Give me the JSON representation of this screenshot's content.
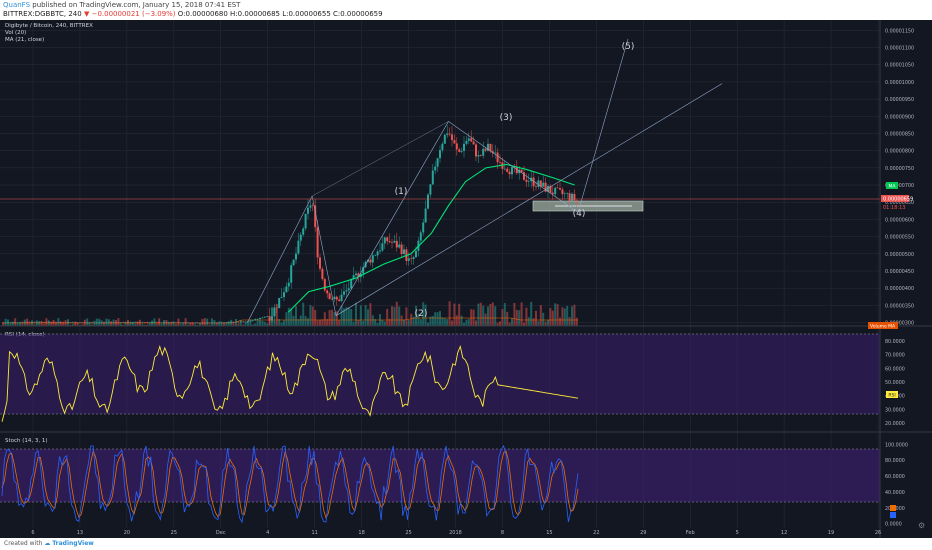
{
  "header": {
    "user": "QuanFS",
    "published": "published on TradingView.com, January 15, 2018 07:41 EST",
    "ticker": "BITTREX:DGBBTC, 240",
    "change": "▼ −0.00000021 (−3.09%)",
    "ohlc": "O:0.00000680 H:0.00000685 L:0.00000655 C:0.00000659"
  },
  "legend": {
    "main": "Digibyte / Bitcoin, 240, BITTREX",
    "vol": "Vol (20)",
    "ma": "MA (21, close)",
    "rsi": "RSI (14, close)",
    "stoch": "Stoch (14, 3, 1)"
  },
  "badges": {
    "ma": "MA",
    "price": "0.00000659",
    "countdown": "01:18:13",
    "volume": "Volume MA",
    "rsi": "RSI"
  },
  "waves": [
    "(1)",
    "(2)",
    "(3)",
    "(4)",
    "(5)"
  ],
  "footer": {
    "created": "Created with",
    "brand": "TradingView"
  },
  "colors": {
    "background": "#131722",
    "grid": "#2a2e39",
    "up": "#26a69a",
    "down": "#ef5350",
    "ma": "#00e676",
    "rsi": "#ffeb3b",
    "stoch_k": "#2962ff",
    "stoch_d": "#ef6c00",
    "band": "#3b1f6e",
    "box": "#9fb0a3"
  },
  "chart_data": [
    {
      "type": "candlestick",
      "title": "Digibyte / Bitcoin, 240, BITTREX",
      "x_ticks": [
        "6",
        "13",
        "20",
        "25",
        "Dec",
        "4",
        "11",
        "18",
        "25",
        "2018",
        "8",
        "15",
        "22",
        "29",
        "Feb",
        "5",
        "12",
        "19",
        "26"
      ],
      "y_ticks": [
        "0.00001150",
        "0.00001100",
        "0.00001050",
        "0.00001000",
        "0.00000950",
        "0.00000900",
        "0.00000850",
        "0.00000800",
        "0.00000750",
        "0.00000700",
        "0.00000650",
        "0.00000600",
        "0.00000550",
        "0.00000500",
        "0.00000450",
        "0.00000400",
        "0.00000350",
        "0.00000300"
      ],
      "ylim": [
        2.9e-06,
        1.18e-05
      ],
      "price_path": [
        [
          0,
          3e-06
        ],
        [
          0.05,
          3.02e-06
        ],
        [
          0.12,
          3e-06
        ],
        [
          0.2,
          3.01e-06
        ],
        [
          0.3,
          2.99e-06
        ],
        [
          0.36,
          3.03e-06
        ],
        [
          0.395,
          3.22e-06
        ],
        [
          0.41,
          3.8e-06
        ],
        [
          0.42,
          4.25e-06
        ],
        [
          0.435,
          5.25e-06
        ],
        [
          0.445,
          6e-06
        ],
        [
          0.455,
          6.6e-06
        ],
        [
          0.46,
          5.6e-06
        ],
        [
          0.465,
          4.7e-06
        ],
        [
          0.475,
          3.95e-06
        ],
        [
          0.49,
          3.6e-06
        ],
        [
          0.505,
          3.9e-06
        ],
        [
          0.525,
          4.5e-06
        ],
        [
          0.545,
          4.95e-06
        ],
        [
          0.565,
          5.4e-06
        ],
        [
          0.585,
          5.2e-06
        ],
        [
          0.6,
          4.7e-06
        ],
        [
          0.61,
          5.1e-06
        ],
        [
          0.625,
          6.5e-06
        ],
        [
          0.635,
          7.5e-06
        ],
        [
          0.645,
          8.2e-06
        ],
        [
          0.655,
          8.6e-06
        ],
        [
          0.67,
          7.9e-06
        ],
        [
          0.685,
          8.4e-06
        ],
        [
          0.7,
          7.8e-06
        ],
        [
          0.715,
          8.1e-06
        ],
        [
          0.73,
          7.7e-06
        ],
        [
          0.75,
          7.4e-06
        ],
        [
          0.77,
          7.2e-06
        ],
        [
          0.79,
          7e-06
        ],
        [
          0.81,
          6.8e-06
        ],
        [
          0.83,
          6.7e-06
        ],
        [
          0.845,
          6.55e-06
        ]
      ],
      "ma_path": [
        [
          0.42,
          3.3e-06
        ],
        [
          0.45,
          3.9e-06
        ],
        [
          0.48,
          4.05e-06
        ],
        [
          0.52,
          4.3e-06
        ],
        [
          0.56,
          4.7e-06
        ],
        [
          0.6,
          5e-06
        ],
        [
          0.63,
          5.6e-06
        ],
        [
          0.655,
          6.4e-06
        ],
        [
          0.68,
          7.1e-06
        ],
        [
          0.71,
          7.5e-06
        ],
        [
          0.74,
          7.6e-06
        ],
        [
          0.77,
          7.45e-06
        ],
        [
          0.81,
          7.2e-06
        ],
        [
          0.84,
          7e-06
        ]
      ],
      "elliott_waves": [
        {
          "label": "(1)",
          "price": 6.68e-06
        },
        {
          "label": "(2)",
          "price": 3.2e-06
        },
        {
          "label": "(3)",
          "price": 8.85e-06
        },
        {
          "label": "(4)",
          "price": 6.2e-06
        },
        {
          "label": "(5)",
          "price": 1.125e-05
        }
      ],
      "support_zone": [
        6.15e-06,
        6.4e-06
      ],
      "last_price": 6.59e-06
    },
    {
      "type": "line",
      "title": "RSI (14, close)",
      "y_ticks": [
        "80.0000",
        "70.0000",
        "60.0000",
        "50.0000",
        "40.0000",
        "30.0000",
        "20.0000"
      ],
      "ylim": [
        15,
        85
      ],
      "band": [
        30,
        70
      ],
      "last_value": 38
    },
    {
      "type": "line",
      "title": "Stoch (14, 3, 1)",
      "y_ticks": [
        "100.0000",
        "80.0000",
        "60.0000",
        "40.0000",
        "20.0000",
        "0.0000"
      ],
      "ylim": [
        -8,
        108
      ],
      "band": [
        20,
        80
      ],
      "series": [
        {
          "values_desc": "%K"
        },
        {
          "values_desc": "%D"
        }
      ]
    }
  ]
}
